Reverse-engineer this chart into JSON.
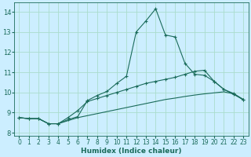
{
  "xlabel": "Humidex (Indice chaleur)",
  "bg_color": "#cceeff",
  "grid_color": "#aaddcc",
  "line_color": "#1a6b5a",
  "xlim": [
    -0.5,
    23.5
  ],
  "ylim": [
    7.85,
    14.45
  ],
  "xticks": [
    0,
    1,
    2,
    3,
    4,
    5,
    6,
    7,
    8,
    9,
    10,
    11,
    12,
    13,
    14,
    15,
    16,
    17,
    18,
    19,
    20,
    21,
    22,
    23
  ],
  "yticks": [
    8,
    9,
    10,
    11,
    12,
    13,
    14
  ],
  "line1_x": [
    0,
    1,
    2,
    3,
    4,
    5,
    6,
    7,
    8,
    9,
    10,
    11,
    12,
    13,
    14,
    15,
    16,
    17,
    18,
    19,
    20,
    21,
    22,
    23
  ],
  "line1_y": [
    8.75,
    8.7,
    8.7,
    8.45,
    8.45,
    8.65,
    8.8,
    9.6,
    9.85,
    10.05,
    10.45,
    10.8,
    13.0,
    13.55,
    14.15,
    12.85,
    12.75,
    11.45,
    10.9,
    10.85,
    10.55,
    10.15,
    9.9,
    9.65
  ],
  "line2_x": [
    0,
    1,
    2,
    3,
    4,
    5,
    6,
    7,
    8,
    9,
    10,
    11,
    12,
    13,
    14,
    15,
    16,
    17,
    18,
    19,
    20,
    21,
    22,
    23
  ],
  "line2_y": [
    8.75,
    8.7,
    8.7,
    8.45,
    8.45,
    8.75,
    9.1,
    9.55,
    9.7,
    9.85,
    10.0,
    10.15,
    10.3,
    10.45,
    10.55,
    10.65,
    10.75,
    10.9,
    11.05,
    11.1,
    10.55,
    10.15,
    9.95,
    9.65
  ],
  "line3_x": [
    0,
    1,
    2,
    3,
    4,
    5,
    6,
    7,
    8,
    9,
    10,
    11,
    12,
    13,
    14,
    15,
    16,
    17,
    18,
    19,
    20,
    21,
    22,
    23
  ],
  "line3_y": [
    8.75,
    8.7,
    8.7,
    8.45,
    8.45,
    8.6,
    8.75,
    8.85,
    8.95,
    9.05,
    9.15,
    9.25,
    9.35,
    9.45,
    9.55,
    9.65,
    9.72,
    9.8,
    9.87,
    9.93,
    9.98,
    10.03,
    9.93,
    9.62
  ]
}
